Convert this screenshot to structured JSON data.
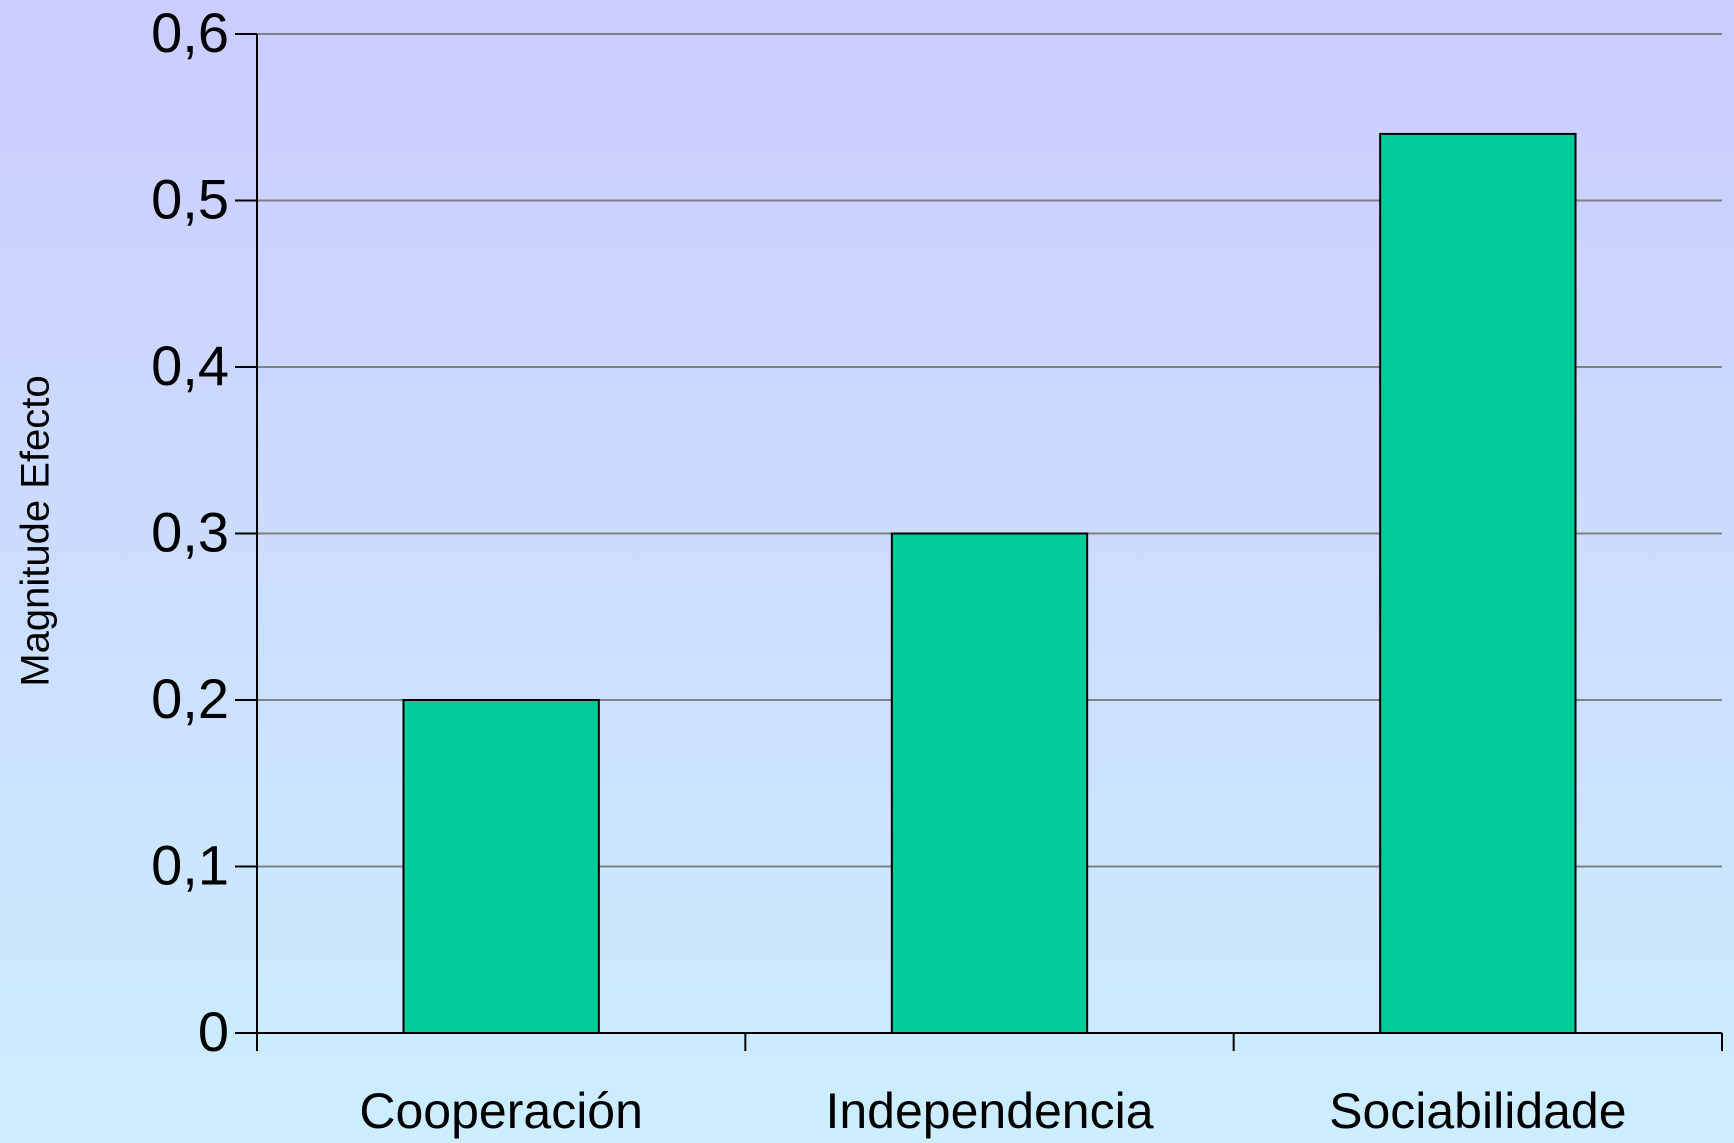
{
  "chart_data": {
    "type": "bar",
    "y_label": "Magnitude Efecto",
    "categories": [
      "Cooperación",
      "Independencia",
      "Sociabilidade"
    ],
    "values": [
      0.2,
      0.3,
      0.54
    ],
    "color": "#00cc99",
    "ylim": [
      0,
      0.6
    ],
    "yticks": [
      0,
      {
        "value": 0.1,
        "label": "0,1"
      },
      {
        "value": 0.2,
        "label": "0,2"
      },
      {
        "value": 0.3,
        "label": "0,3"
      },
      {
        "value": 0.4,
        "label": "0,4"
      },
      {
        "value": 0.5,
        "label": "0,5"
      },
      {
        "value": 0.6,
        "label": "0,6"
      }
    ],
    "grid": true
  }
}
